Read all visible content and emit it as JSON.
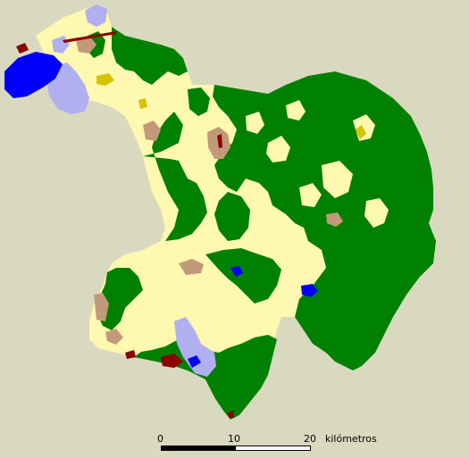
{
  "colors": {
    "background": "#d9d9c0",
    "forest": "#008000",
    "cropland": "#fff8b0",
    "scrub": "#c29a7a",
    "urban": "#b0b0f0",
    "water": "#0000ff",
    "wetland": "#d4c400",
    "industrial": "#8b0000",
    "scale_black": "#000000",
    "scale_white": "#ffffff"
  },
  "scale_bar": {
    "tick_0": "0",
    "tick_10": "10",
    "tick_20": "20",
    "unit": "kilómetros"
  }
}
